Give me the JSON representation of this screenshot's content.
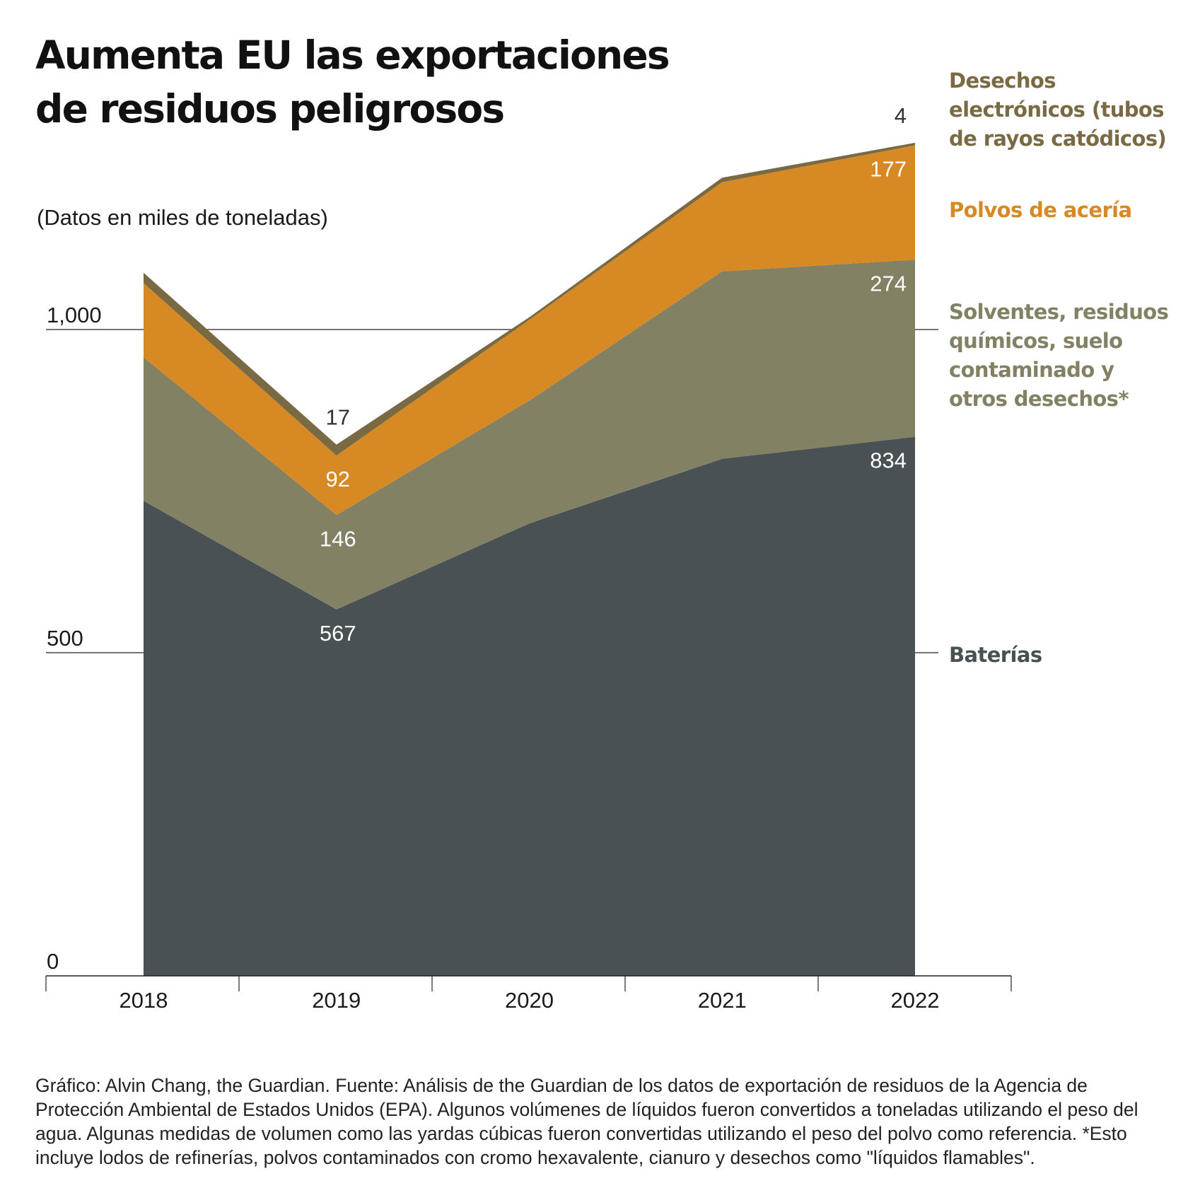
{
  "title": "Aumenta EU las exportaciones\nde residuos peligrosos",
  "subtitle": "(Datos en miles de toneladas)",
  "colors": {
    "baterias": "#4a5154",
    "solventes": "#838164",
    "polvos": "#d78923",
    "electronicos": "#7a6a44",
    "grid": "#222222",
    "background": "#ffffff"
  },
  "legend": [
    {
      "key": "electronicos",
      "label": "Desechos electrónicos (tubos de rayos catódicos)",
      "color": "#7a6a44"
    },
    {
      "key": "polvos",
      "label": "Polvos de acería",
      "color": "#d78923"
    },
    {
      "key": "solventes",
      "label": "Solventes, residuos químicos, suelo contaminado y otros desechos*",
      "color": "#838164"
    },
    {
      "key": "baterias",
      "label": "Baterías",
      "color": "#4a5154"
    }
  ],
  "chart_data": {
    "type": "area",
    "stacked": true,
    "categories": [
      "2018",
      "2019",
      "2020",
      "2021",
      "2022"
    ],
    "ylim": [
      0,
      1100
    ],
    "yticks": [
      0,
      500,
      1000
    ],
    "ytick_labels": [
      "0",
      "500",
      "1,000"
    ],
    "grid": true,
    "legend_position": "right",
    "series": [
      {
        "name": "Baterías",
        "key": "baterias",
        "values": [
          735,
          567,
          700,
          800,
          834
        ]
      },
      {
        "name": "Solventes, residuos químicos, suelo contaminado y otros desechos*",
        "key": "solventes",
        "values": [
          222,
          146,
          190,
          290,
          274
        ]
      },
      {
        "name": "Polvos de acería",
        "key": "polvos",
        "values": [
          115,
          92,
          125,
          138,
          177
        ]
      },
      {
        "name": "Desechos electrónicos (tubos de rayos catódicos)",
        "key": "electronicos",
        "values": [
          16,
          17,
          4,
          7,
          4
        ]
      }
    ],
    "annotations": [
      {
        "category": "2019",
        "series": "electronicos",
        "text": "17"
      },
      {
        "category": "2019",
        "series": "polvos",
        "text": "92"
      },
      {
        "category": "2019",
        "series": "solventes",
        "text": "146"
      },
      {
        "category": "2019",
        "series": "baterias",
        "text": "567"
      },
      {
        "category": "2022",
        "series": "electronicos",
        "text": "4"
      },
      {
        "category": "2022",
        "series": "polvos",
        "text": "177"
      },
      {
        "category": "2022",
        "series": "solventes",
        "text": "274"
      },
      {
        "category": "2022",
        "series": "baterias",
        "text": "834"
      }
    ]
  },
  "footer": "Gráfico: Alvin Chang, the Guardian. Fuente: Análisis de the Guardian de los datos de exportación de residuos de la Agencia de Protección Ambiental de Estados Unidos (EPA). Algunos volúmenes de líquidos fueron convertidos a toneladas utilizando el peso del agua. Algunas medidas de volumen como las yardas cúbicas fueron convertidas utilizando el peso del polvo como referencia. *Esto incluye lodos de refinerías, polvos contaminados con cromo hexavalente, cianuro y desechos como \"líquidos flamables\"."
}
